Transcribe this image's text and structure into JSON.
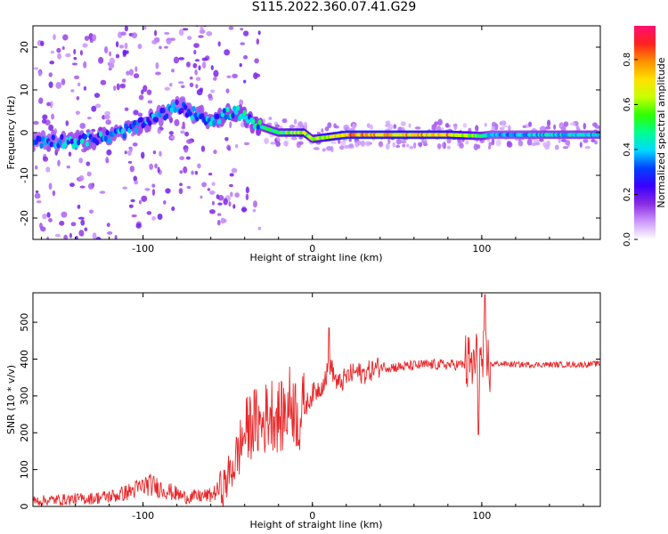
{
  "figure": {
    "title": "S115.2022.360.07.41.G29"
  },
  "colors": {
    "snr_line": "#e8282a",
    "background": "#ffffff",
    "axis": "#000000",
    "colormap": [
      "#ffffff",
      "#cc99ff",
      "#8a2be2",
      "#3a00ff",
      "#0040ff",
      "#00d8ff",
      "#00ff90",
      "#2fff00",
      "#c8ff00",
      "#ffe000",
      "#ff9000",
      "#ff2020",
      "#ff1070"
    ]
  },
  "chart_data": [
    {
      "type": "heatmap",
      "title": "",
      "xlabel": "Height of straight line (km)",
      "ylabel": "Frequency (Hz)",
      "xlim": [
        -165,
        170
      ],
      "ylim": [
        -25,
        25
      ],
      "x_ticks": [
        -100,
        0,
        100
      ],
      "y_ticks": [
        -20,
        -10,
        0,
        10,
        20
      ],
      "colorbar": {
        "label": "Normalized spectral amplitude",
        "range": [
          0,
          0.95
        ],
        "ticks": [
          0.0,
          0.2,
          0.4,
          0.6,
          0.8
        ]
      },
      "ridge": {
        "description_points": [
          {
            "x": -165,
            "freq": -2,
            "amp": 0.35
          },
          {
            "x": -140,
            "freq": -2,
            "amp": 0.4
          },
          {
            "x": -120,
            "freq": -1,
            "amp": 0.4
          },
          {
            "x": -100,
            "freq": 2,
            "amp": 0.4
          },
          {
            "x": -80,
            "freq": 6,
            "amp": 0.35
          },
          {
            "x": -60,
            "freq": 3,
            "amp": 0.4
          },
          {
            "x": -45,
            "freq": 5,
            "amp": 0.45
          },
          {
            "x": -35,
            "freq": 2,
            "amp": 0.45
          },
          {
            "x": -20,
            "freq": 0,
            "amp": 0.55
          },
          {
            "x": -5,
            "freq": 0,
            "amp": 0.7
          },
          {
            "x": 0,
            "freq": -1.5,
            "amp": 0.6
          },
          {
            "x": 20,
            "freq": -0.5,
            "amp": 0.85
          },
          {
            "x": 50,
            "freq": -0.5,
            "amp": 0.8
          },
          {
            "x": 80,
            "freq": -0.5,
            "amp": 0.8
          },
          {
            "x": 100,
            "freq": -0.8,
            "amp": 0.55
          },
          {
            "x": 105,
            "freq": -0.5,
            "amp": 0.4
          },
          {
            "x": 140,
            "freq": -0.5,
            "amp": 0.45
          },
          {
            "x": 170,
            "freq": -0.5,
            "amp": 0.45
          }
        ]
      }
    },
    {
      "type": "line",
      "title": "",
      "xlabel": "Height of straight line (km)",
      "ylabel": "SNR (10 * v/v)",
      "xlim": [
        -165,
        170
      ],
      "ylim": [
        0,
        580
      ],
      "x_ticks": [
        -100,
        0,
        100
      ],
      "y_ticks": [
        0,
        100,
        200,
        300,
        400,
        500
      ],
      "series": [
        {
          "x": [
            -165,
            -150,
            -130,
            -115,
            -105,
            -97,
            -90,
            -75,
            -60,
            -52,
            -45,
            -40,
            -35,
            -30,
            -25,
            -22,
            -18,
            -12,
            -8,
            -5,
            0,
            5,
            8,
            10,
            15,
            20,
            25,
            30,
            35,
            40,
            50,
            60,
            70,
            80,
            90,
            95,
            97,
            99,
            101,
            105,
            110,
            120,
            130,
            140,
            150,
            160,
            170
          ],
          "values": [
            15,
            18,
            22,
            30,
            45,
            60,
            50,
            25,
            30,
            55,
            130,
            200,
            230,
            220,
            260,
            250,
            240,
            290,
            230,
            265,
            305,
            325,
            350,
            390,
            330,
            350,
            365,
            360,
            370,
            380,
            378,
            382,
            385,
            385,
            385,
            380,
            390,
            385,
            390,
            385,
            388,
            385,
            385,
            385,
            385,
            385,
            388
          ]
        }
      ]
    }
  ]
}
